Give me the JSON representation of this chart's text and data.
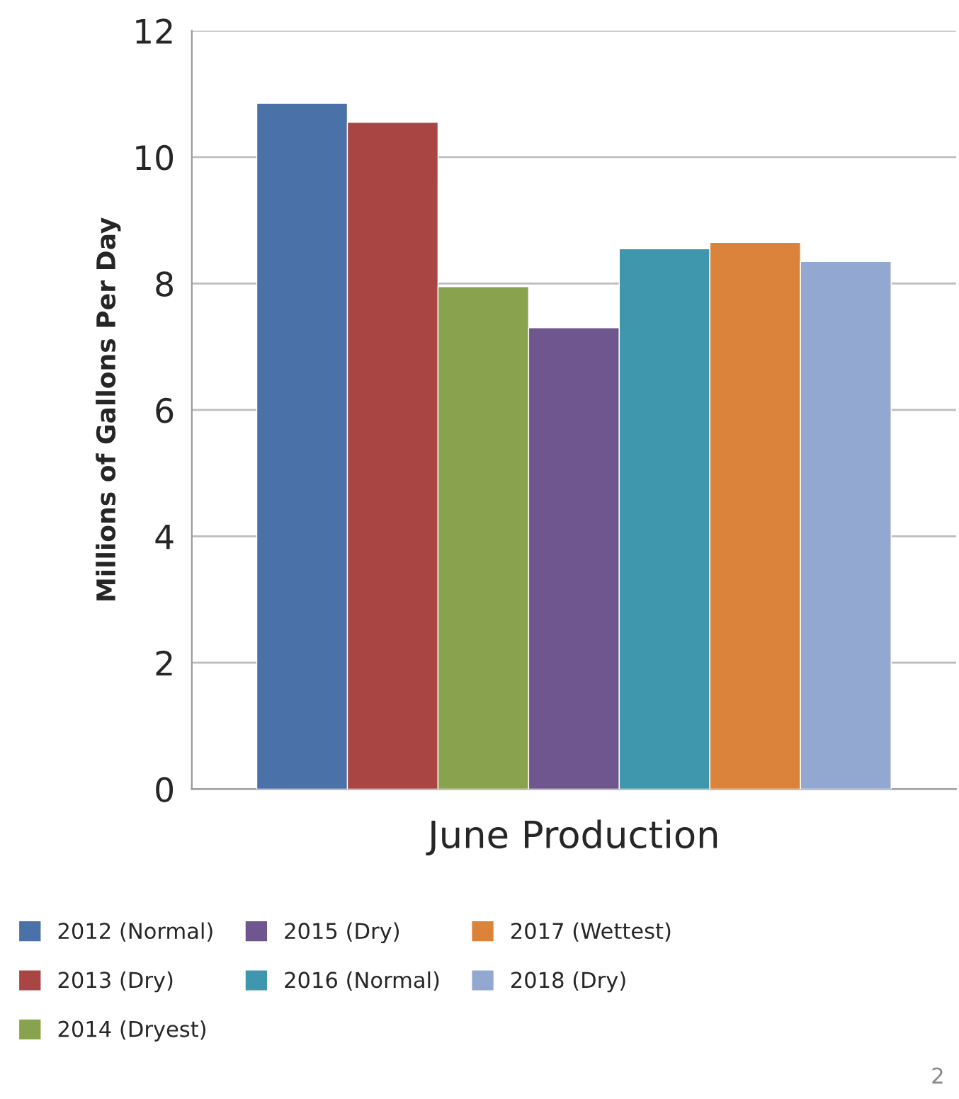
{
  "chart_data": {
    "type": "bar",
    "xlabel": "June Production",
    "ylabel": "Millions of Gallons Per Day",
    "categories": [
      null
    ],
    "series": [
      {
        "name": "2012 (Normal)",
        "color": "#4a71a8",
        "values": [
          10.85
        ]
      },
      {
        "name": "2013 (Dry)",
        "color": "#a94543",
        "values": [
          10.55
        ]
      },
      {
        "name": "2014 (Dryest)",
        "color": "#89a24d",
        "values": [
          7.95
        ]
      },
      {
        "name": "2015 (Dry)",
        "color": "#6f568f",
        "values": [
          7.3
        ]
      },
      {
        "name": "2016 (Normal)",
        "color": "#3f97ae",
        "values": [
          8.55
        ]
      },
      {
        "name": "2017 (Wettest)",
        "color": "#db833a",
        "values": [
          8.65
        ]
      },
      {
        "name": "2018 (Dry)",
        "color": "#93a8d0",
        "values": [
          8.35
        ]
      }
    ],
    "ylim": [
      0,
      12
    ],
    "yticks": [
      0,
      2,
      4,
      6,
      8,
      10,
      12
    ],
    "grid": "y",
    "legend": "bottom",
    "annotations": [
      "2"
    ]
  }
}
